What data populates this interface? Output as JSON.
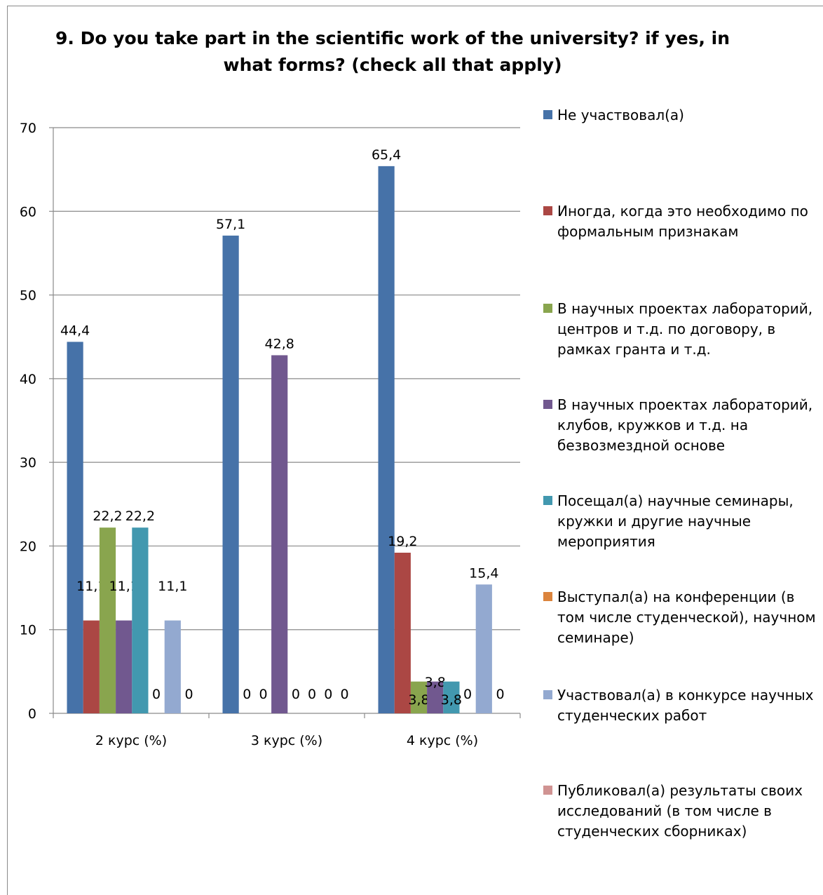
{
  "chart_data": {
    "type": "bar",
    "title": "9. Do you take part in the scientific work of the university? if yes, in what forms? (check all that apply)",
    "categories": [
      "2 курс (%)",
      "3 курс (%)",
      "4 курс (%)"
    ],
    "yticks": [
      "0",
      "10",
      "20",
      "30",
      "40",
      "50",
      "60",
      "70"
    ],
    "ylim": [
      0,
      70
    ],
    "grid": true,
    "legend_position": "right",
    "series": [
      {
        "name": "Не участвовал(а)",
        "color": "#4672A8",
        "values": [
          44.4,
          57.1,
          65.4
        ],
        "labels": [
          "44,4",
          "57,1",
          "65,4"
        ]
      },
      {
        "name": "Иногда, когда это необходимо по формальным признакам",
        "color": "#AB4744",
        "values": [
          11.1,
          0,
          19.2
        ],
        "labels": [
          "11,1",
          "0",
          "19,2"
        ]
      },
      {
        "name": "В научных проектах лабораторий, центров и т.д. по договору, в рамках гранта и т.д.",
        "color": "#89A54E",
        "values": [
          22.2,
          0,
          3.8
        ],
        "labels": [
          "22,2",
          "0",
          "3,8"
        ]
      },
      {
        "name": "В научных проектах лабораторий, клубов, кружков и т.д. на безвозмездной основе",
        "color": "#71588F",
        "values": [
          11.1,
          42.8,
          3.8
        ],
        "labels": [
          "11,1",
          "42,8",
          "3,8"
        ]
      },
      {
        "name": "Посещал(а) научные семинары, кружки и другие научные мероприятия",
        "color": "#4298AF",
        "values": [
          22.2,
          0,
          3.8
        ],
        "labels": [
          "22,2",
          "0",
          "3,8"
        ]
      },
      {
        "name": "Выступал(а) на конференции (в том числе студенческой), научном семинаре)",
        "color": "#DB843D",
        "values": [
          0,
          0,
          0
        ],
        "labels": [
          "0",
          "0",
          "0"
        ]
      },
      {
        "name": "Участвовал(а) в конкурсе научных студенческих работ",
        "color": "#93A9D0",
        "values": [
          11.1,
          0,
          15.4
        ],
        "labels": [
          "11,1",
          "0",
          "15,4"
        ]
      },
      {
        "name": "Публиковал(а) результаты своих исследований (в том числе в студенческих сборниках)",
        "color": "#D09392",
        "values": [
          0,
          0,
          0
        ],
        "labels": [
          "0",
          "0",
          "0"
        ]
      }
    ]
  }
}
